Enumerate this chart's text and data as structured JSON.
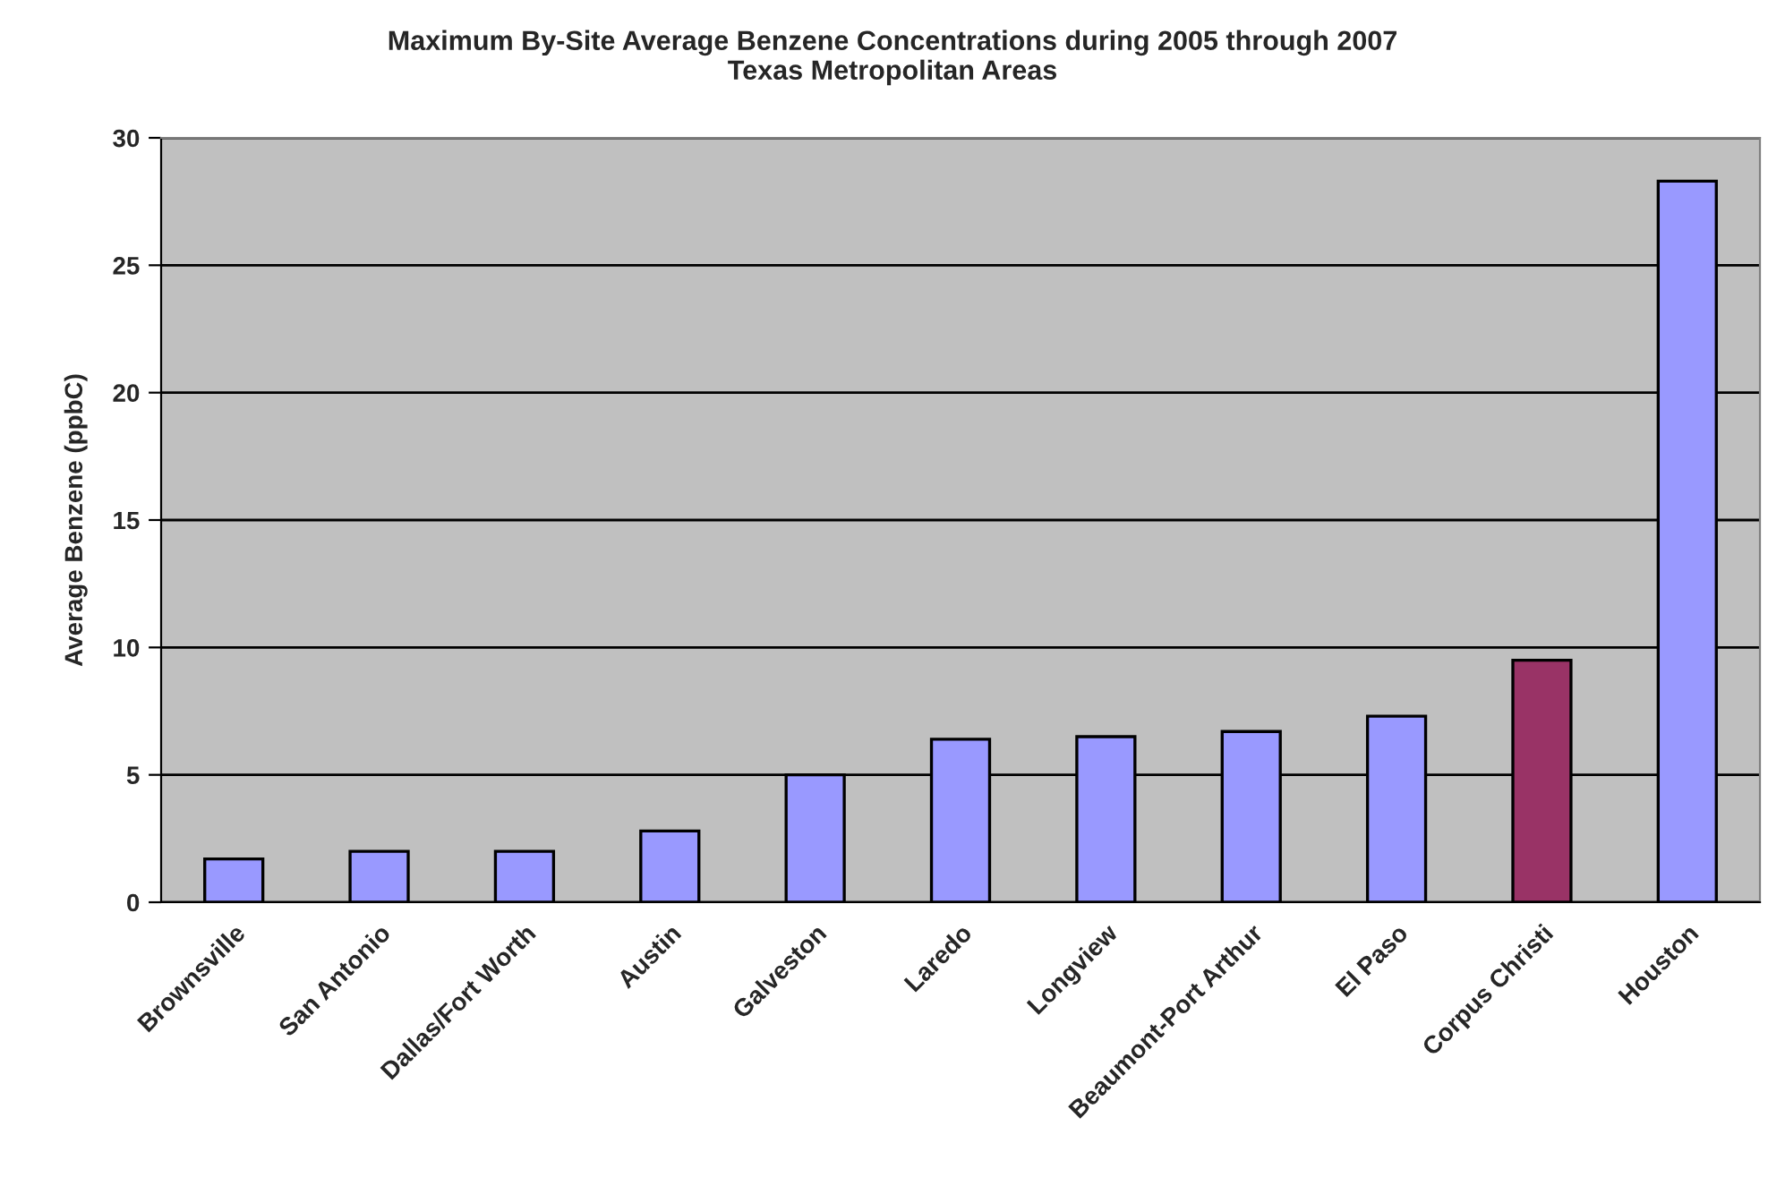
{
  "chart_data": {
    "type": "bar",
    "title": "Maximum By-Site Average Benzene Concentrations during 2005 through 2007\nTexas Metropolitan Areas",
    "ylabel": "Average Benzene (ppbC)",
    "categories": [
      "Brownsville",
      "San Antonio",
      "Dallas/Fort Worth",
      "Austin",
      "Galveston",
      "Laredo",
      "Longview",
      "Beaumont-Port Arthur",
      "El Paso",
      "Corpus Christi",
      "Houston"
    ],
    "values": [
      1.7,
      2.0,
      2.0,
      2.8,
      5.0,
      6.4,
      6.5,
      6.7,
      7.3,
      9.5,
      28.3
    ],
    "colors": [
      "#9999ff",
      "#9999ff",
      "#9999ff",
      "#9999ff",
      "#9999ff",
      "#9999ff",
      "#9999ff",
      "#9999ff",
      "#9999ff",
      "#993366",
      "#9999ff"
    ],
    "ylim": [
      0,
      30
    ],
    "yticks": [
      0,
      5,
      10,
      15,
      20,
      25,
      30
    ],
    "grid": "y",
    "legend": false
  }
}
